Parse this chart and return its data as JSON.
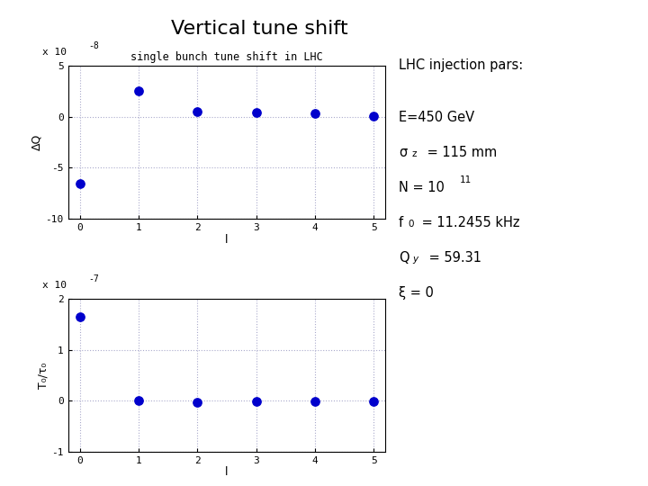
{
  "title": "Vertical tune shift",
  "title_fontsize": 16,
  "annotation_title": "LHC injection pars:",
  "top_plot": {
    "title": "single bunch tune shift in LHC",
    "xlabel": "l",
    "ylabel": "ΔQ",
    "x": [
      0,
      1,
      2,
      3,
      4,
      5
    ],
    "y_raw": [
      -6.5e-08,
      2.5e-08,
      5e-09,
      4e-09,
      3e-09,
      1e-09
    ],
    "ylim": [
      -1e-07,
      5e-08
    ],
    "yticks": [
      -1e-07,
      -5e-08,
      0,
      5e-08
    ],
    "ytick_labels": [
      "-10",
      "-5",
      "0",
      "5"
    ],
    "scale_label": "x 10",
    "scale_exp": "-8",
    "xlim": [
      -0.2,
      5.2
    ],
    "xticks": [
      0,
      1,
      2,
      3,
      4,
      5
    ]
  },
  "bottom_plot": {
    "xlabel": "l",
    "ylabel": "T₀/τ₀",
    "x": [
      0,
      1,
      2,
      3,
      4,
      5
    ],
    "y_raw": [
      1.65e-07,
      0.0,
      -2e-09,
      -1e-09,
      -5e-10,
      -3e-10
    ],
    "ylim": [
      -1e-07,
      2e-07
    ],
    "yticks": [
      -1e-07,
      0,
      1e-07,
      2e-07
    ],
    "ytick_labels": [
      "-1",
      "0",
      "1",
      "2"
    ],
    "scale_label": "x 10",
    "scale_exp": "-7",
    "xlim": [
      -0.2,
      5.2
    ],
    "xticks": [
      0,
      1,
      2,
      3,
      4,
      5
    ]
  },
  "dot_color": "#0000CC",
  "dot_size": 45,
  "grid_color": "#aaaacc",
  "background_color": "#ffffff"
}
